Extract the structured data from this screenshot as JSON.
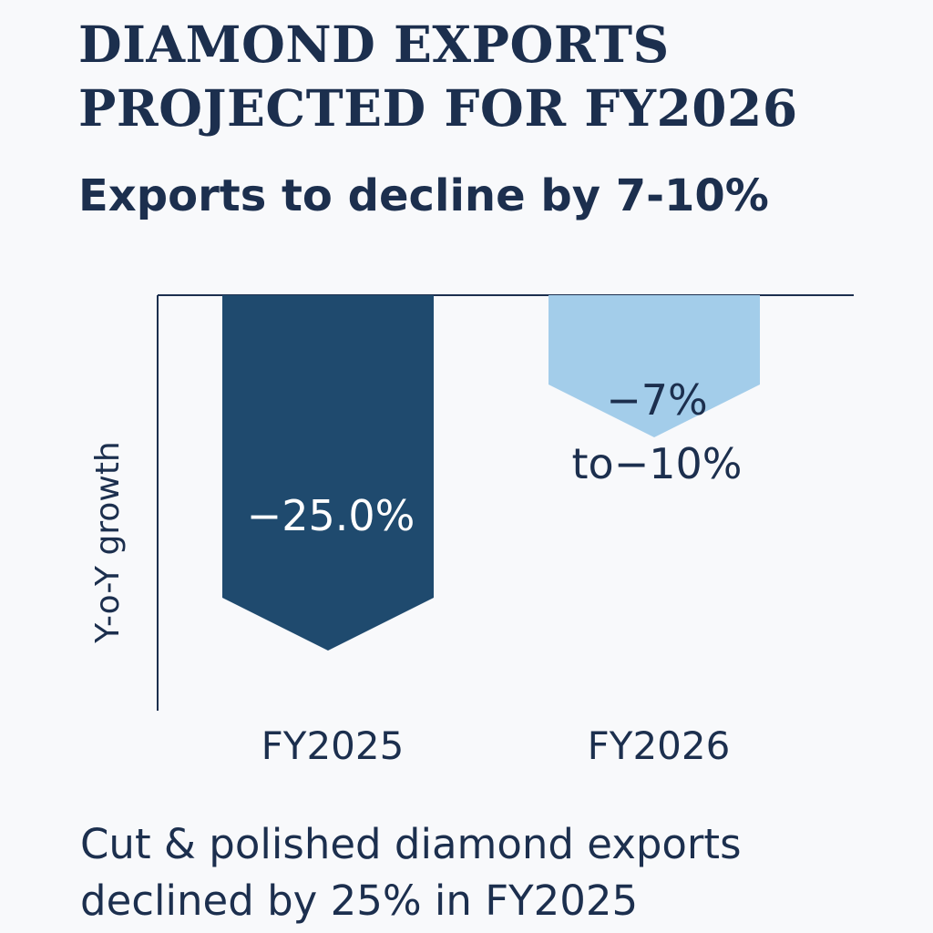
{
  "title_lines": [
    "DIAMOND EXPORTS",
    "PROJECTED FOR FY2026"
  ],
  "subtitle": "Exports to decline by 7-10%",
  "footnote_lines": [
    "Cut & polished diamond exports",
    "declined by 25% in FY2025"
  ],
  "chart_data": {
    "type": "bar",
    "categories": [
      "FY2025",
      "FY2026"
    ],
    "values": [
      -25.0,
      -10
    ],
    "value_ranges": [
      null,
      [
        -7,
        -10
      ]
    ],
    "data_labels": [
      [
        "−25.0%"
      ],
      [
        "−7%",
        "to−10%"
      ]
    ],
    "ylabel": "Y-o-Y growth",
    "ylim": [
      -25,
      0
    ],
    "bar_colors": [
      "#1f4a6e",
      "#a3cdea"
    ],
    "data_label_colors": [
      "#ffffff",
      "#1c2f4e"
    ],
    "grid": false,
    "orientation": "bars hang down from zero line, arrow-shaped tips"
  }
}
